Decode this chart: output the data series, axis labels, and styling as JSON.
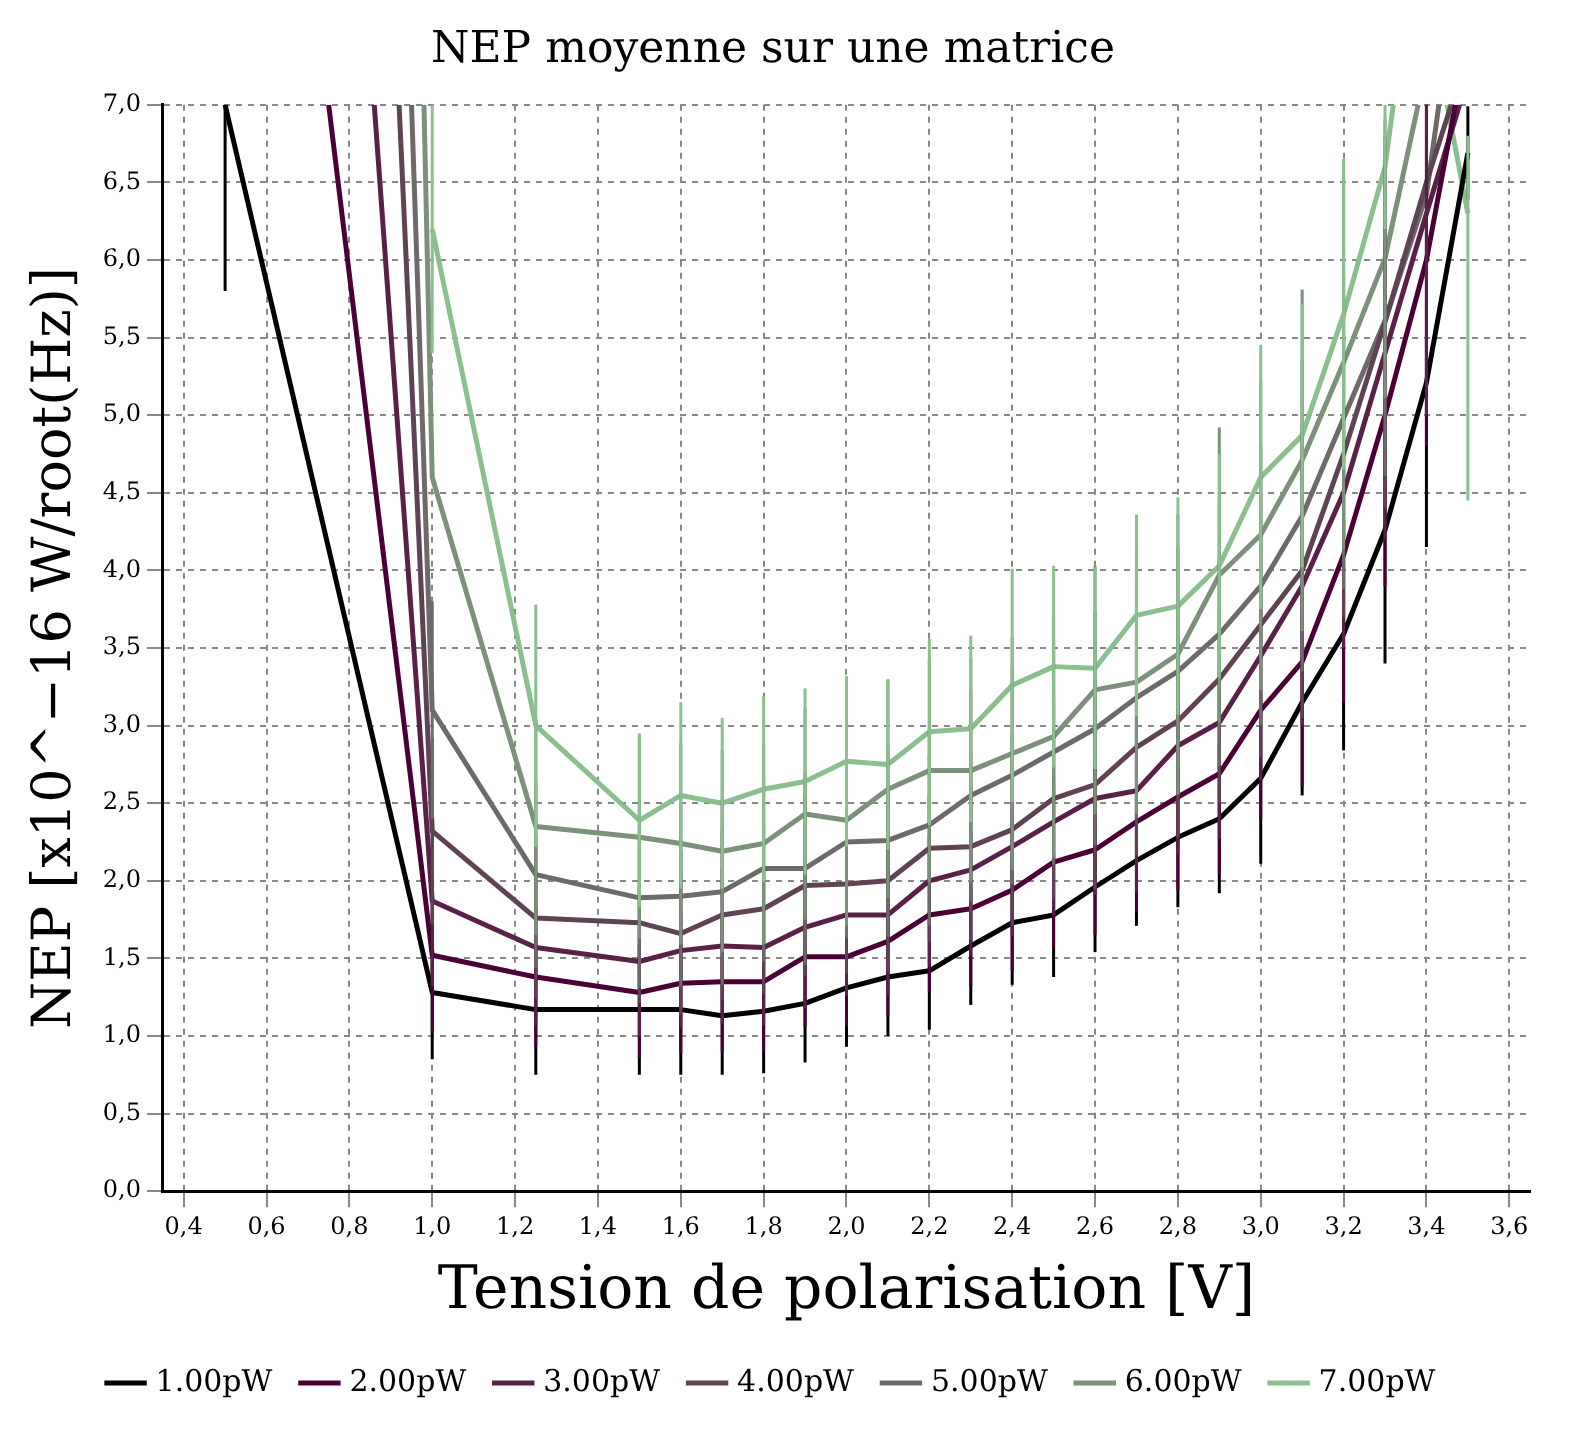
{
  "chart_data": {
    "type": "line",
    "title": "NEP moyenne sur une matrice",
    "xlabel": "Tension de polarisation [V]",
    "ylabel": "NEP [x10^−16 W/root(Hz)]",
    "xlim": [
      0.35,
      3.65
    ],
    "xticks": [
      {
        "value": 0.4,
        "label": "0,4"
      },
      {
        "value": 0.6,
        "label": "0,6"
      },
      {
        "value": 0.8,
        "label": "0,8"
      },
      {
        "value": 1.0,
        "label": "1,0"
      },
      {
        "value": 1.2,
        "label": "1,2"
      },
      {
        "value": 1.4,
        "label": "1,4"
      },
      {
        "value": 1.6,
        "label": "1,6"
      },
      {
        "value": 1.8,
        "label": "1,8"
      },
      {
        "value": 2.0,
        "label": "2,0"
      },
      {
        "value": 2.2,
        "label": "2,2"
      },
      {
        "value": 2.4,
        "label": "2,4"
      },
      {
        "value": 2.6,
        "label": "2,6"
      },
      {
        "value": 2.8,
        "label": "2,8"
      },
      {
        "value": 3.0,
        "label": "3,0"
      },
      {
        "value": 3.2,
        "label": "3,2"
      },
      {
        "value": 3.4,
        "label": "3,4"
      },
      {
        "value": 3.6,
        "label": "3,6"
      }
    ],
    "ylim": [
      0,
      7
    ],
    "yticks": [
      {
        "value": 0,
        "label": "0,0"
      },
      {
        "value": 0.5,
        "label": "0,5"
      },
      {
        "value": 1.0,
        "label": "1,0"
      },
      {
        "value": 1.5,
        "label": "1,5"
      },
      {
        "value": 2.0,
        "label": "2,0"
      },
      {
        "value": 2.5,
        "label": "2,5"
      },
      {
        "value": 3.0,
        "label": "3,0"
      },
      {
        "value": 3.5,
        "label": "3,5"
      },
      {
        "value": 4.0,
        "label": "4,0"
      },
      {
        "value": 4.5,
        "label": "4,5"
      },
      {
        "value": 5.0,
        "label": "5,0"
      },
      {
        "value": 5.5,
        "label": "5,5"
      },
      {
        "value": 6.0,
        "label": "6,0"
      },
      {
        "value": 6.5,
        "label": "6,5"
      },
      {
        "value": 7.0,
        "label": "7,0"
      }
    ],
    "grid": true,
    "legend": "bottom",
    "marker": "none",
    "line_style": "solid",
    "series": [
      {
        "name": "1.00pW",
        "color": "#000000",
        "x": [
          0.5,
          1.0,
          1.25,
          1.5,
          1.6,
          1.7,
          1.8,
          1.9,
          2.0,
          2.1,
          2.2,
          2.3,
          2.4,
          2.5,
          2.6,
          2.7,
          2.8,
          2.9,
          3.0,
          3.1,
          3.2,
          3.3,
          3.4,
          3.5
        ],
        "values": [
          7.0,
          1.28,
          1.17,
          1.17,
          1.17,
          1.13,
          1.16,
          1.21,
          1.31,
          1.38,
          1.42,
          1.58,
          1.73,
          1.78,
          1.96,
          2.13,
          2.28,
          2.4,
          2.66,
          3.15,
          3.59,
          4.26,
          5.21,
          6.69
        ],
        "errors": [
          [
            5.8,
            7.0
          ],
          0.43,
          0.42,
          0.42,
          0.42,
          0.38,
          0.4,
          0.38,
          0.38,
          0.38,
          0.38,
          0.38,
          0.4,
          0.4,
          0.42,
          0.42,
          0.45,
          0.48,
          0.55,
          0.6,
          0.75,
          0.86,
          1.06,
          0.3
        ]
      },
      {
        "name": "2.00pW",
        "color": "#4a0035",
        "x": [
          0.75,
          1.0,
          1.25,
          1.5,
          1.6,
          1.7,
          1.8,
          1.9,
          2.0,
          2.1,
          2.2,
          2.3,
          2.4,
          2.5,
          2.6,
          2.7,
          2.8,
          2.9,
          3.0,
          3.1,
          3.2,
          3.3,
          3.4,
          3.47
        ],
        "values": [
          7.0,
          1.52,
          1.38,
          1.28,
          1.34,
          1.35,
          1.35,
          1.51,
          1.51,
          1.61,
          1.78,
          1.82,
          1.94,
          2.12,
          2.2,
          2.38,
          2.54,
          2.69,
          3.1,
          3.41,
          4.1,
          5.0,
          6.0,
          7.0
        ],
        "errors": [
          null,
          0.5,
          0.45,
          0.42,
          0.45,
          0.45,
          0.45,
          0.45,
          0.45,
          0.48,
          0.5,
          0.5,
          0.52,
          0.55,
          0.55,
          0.58,
          0.6,
          0.65,
          0.7,
          0.8,
          0.95,
          1.1,
          1.2,
          null
        ]
      },
      {
        "name": "3.00pW",
        "color": "#5a2148",
        "x": [
          0.86,
          1.0,
          1.25,
          1.5,
          1.6,
          1.7,
          1.8,
          1.9,
          2.0,
          2.1,
          2.2,
          2.3,
          2.4,
          2.5,
          2.6,
          2.7,
          2.8,
          2.9,
          3.0,
          3.1,
          3.2,
          3.3,
          3.4,
          3.48
        ],
        "values": [
          7.0,
          1.87,
          1.57,
          1.48,
          1.55,
          1.58,
          1.57,
          1.7,
          1.78,
          1.78,
          2.0,
          2.07,
          2.22,
          2.38,
          2.53,
          2.58,
          2.87,
          3.02,
          3.45,
          3.9,
          4.5,
          5.4,
          6.3,
          7.0
        ],
        "errors": [
          null,
          0.55,
          0.5,
          0.48,
          0.5,
          0.5,
          0.5,
          0.52,
          0.52,
          0.52,
          0.55,
          0.55,
          0.58,
          0.6,
          0.62,
          0.65,
          0.7,
          0.75,
          0.8,
          0.9,
          1.0,
          1.2,
          1.3,
          null
        ]
      },
      {
        "name": "4.00pW",
        "color": "#5e4355",
        "x": [
          0.92,
          1.0,
          1.25,
          1.5,
          1.6,
          1.7,
          1.8,
          1.9,
          2.0,
          2.1,
          2.2,
          2.3,
          2.4,
          2.5,
          2.6,
          2.7,
          2.8,
          2.9,
          3.0,
          3.1,
          3.2,
          3.3,
          3.4,
          3.46
        ],
        "values": [
          7.0,
          2.32,
          1.76,
          1.73,
          1.66,
          1.78,
          1.82,
          1.97,
          1.98,
          2.0,
          2.21,
          2.22,
          2.33,
          2.53,
          2.62,
          2.86,
          3.03,
          3.3,
          3.65,
          4.0,
          4.75,
          5.6,
          6.5,
          7.0
        ],
        "errors": [
          null,
          0.6,
          0.52,
          0.52,
          0.52,
          0.55,
          0.55,
          0.58,
          0.58,
          0.58,
          0.6,
          0.6,
          0.62,
          0.65,
          0.68,
          0.7,
          0.75,
          0.8,
          0.85,
          0.95,
          1.05,
          1.2,
          null,
          null
        ]
      },
      {
        "name": "5.00pW",
        "color": "#6e6a6a",
        "x": [
          0.95,
          1.0,
          1.25,
          1.5,
          1.6,
          1.7,
          1.8,
          1.9,
          2.0,
          2.1,
          2.2,
          2.3,
          2.4,
          2.5,
          2.6,
          2.7,
          2.8,
          2.9,
          3.0,
          3.1,
          3.2,
          3.3,
          3.4,
          3.43
        ],
        "values": [
          7.0,
          3.1,
          2.04,
          1.89,
          1.9,
          1.93,
          2.08,
          2.08,
          2.25,
          2.26,
          2.36,
          2.55,
          2.68,
          2.83,
          2.98,
          3.18,
          3.35,
          3.59,
          3.9,
          4.35,
          4.98,
          5.61,
          6.42,
          7.0
        ],
        "errors": [
          null,
          0.7,
          0.6,
          0.58,
          0.58,
          0.6,
          0.6,
          0.62,
          0.62,
          0.62,
          0.65,
          0.68,
          0.7,
          0.72,
          0.75,
          0.78,
          0.8,
          0.85,
          0.9,
          1.0,
          1.1,
          1.0,
          null,
          null
        ]
      },
      {
        "name": "6.00pW",
        "color": "#7c917a",
        "x": [
          0.98,
          1.0,
          1.25,
          1.5,
          1.6,
          1.7,
          1.8,
          1.9,
          2.0,
          2.1,
          2.2,
          2.3,
          2.4,
          2.5,
          2.6,
          2.7,
          2.8,
          2.9,
          3.0,
          3.1,
          3.2,
          3.3,
          3.38
        ],
        "values": [
          7.0,
          4.6,
          2.35,
          2.28,
          2.24,
          2.19,
          2.24,
          2.43,
          2.39,
          2.59,
          2.71,
          2.71,
          2.82,
          2.93,
          3.23,
          3.28,
          3.46,
          3.97,
          4.23,
          4.71,
          5.34,
          6.01,
          7.0
        ],
        "errors": [
          null,
          null,
          0.7,
          0.65,
          0.65,
          0.65,
          0.65,
          0.68,
          0.68,
          0.7,
          0.72,
          0.72,
          0.75,
          0.78,
          0.8,
          0.85,
          0.9,
          0.95,
          1.0,
          1.1,
          1.2,
          0.9,
          null
        ]
      },
      {
        "name": "7.00pW",
        "color": "#8cbf90",
        "x": [
          1.0,
          1.25,
          1.5,
          1.6,
          1.7,
          1.8,
          1.9,
          2.0,
          2.1,
          2.2,
          2.3,
          2.4,
          2.5,
          2.6,
          2.7,
          2.8,
          2.9,
          3.0,
          3.1,
          3.2,
          3.3,
          3.32,
          3.4,
          3.45,
          3.5
        ],
        "values": [
          6.2,
          3.0,
          2.39,
          2.55,
          2.5,
          2.59,
          2.64,
          2.77,
          2.75,
          2.96,
          2.98,
          3.26,
          3.38,
          3.37,
          3.71,
          3.77,
          4.03,
          4.6,
          4.87,
          5.65,
          6.6,
          7.0,
          null,
          7.0,
          6.3
        ],
        "errors": [
          0.8,
          0.78,
          0.56,
          0.6,
          0.55,
          0.6,
          0.6,
          0.55,
          0.55,
          0.6,
          0.6,
          0.75,
          0.65,
          0.65,
          0.65,
          0.7,
          0.72,
          0.85,
          0.85,
          1.0,
          0.4,
          null,
          null,
          null,
          [
            4.45,
            6.8
          ]
        ]
      }
    ]
  }
}
